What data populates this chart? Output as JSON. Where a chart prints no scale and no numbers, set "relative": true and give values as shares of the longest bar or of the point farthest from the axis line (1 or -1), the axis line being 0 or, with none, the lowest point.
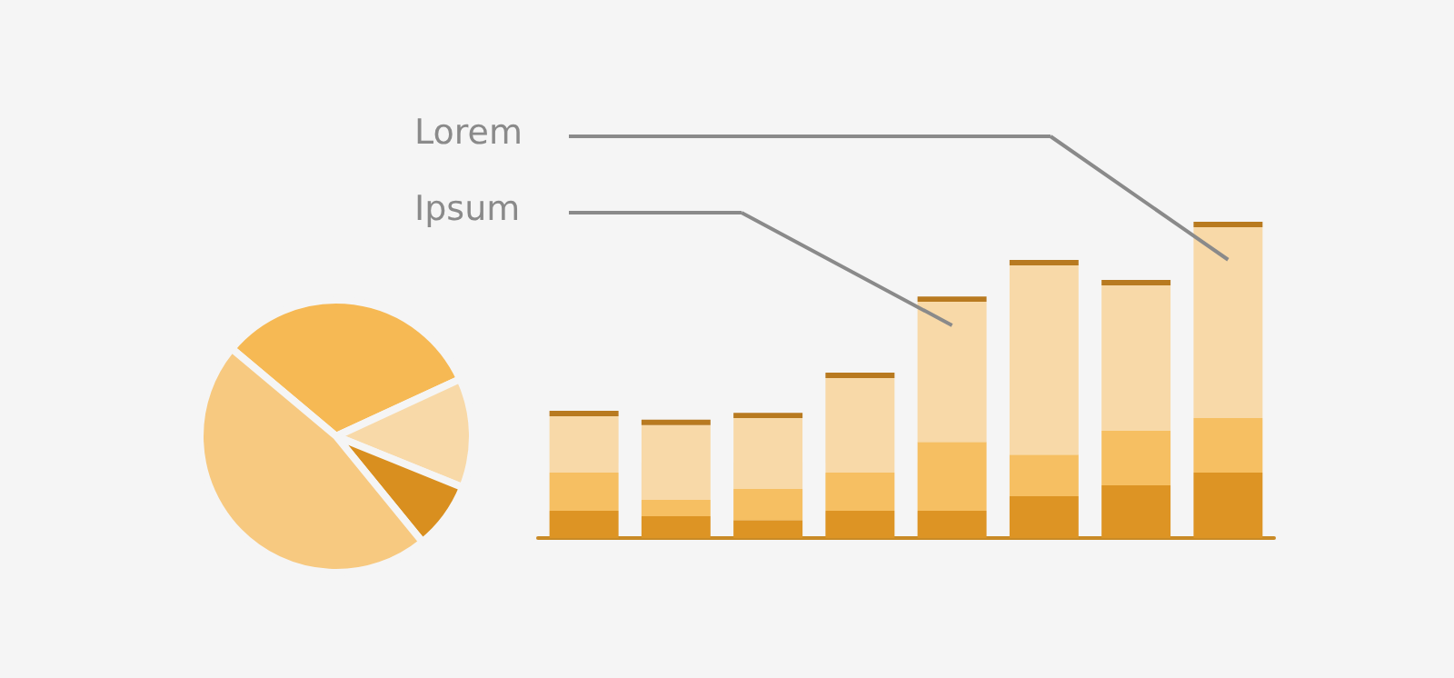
{
  "chart_data": [
    {
      "type": "pie",
      "categories": [
        null,
        null,
        null,
        null
      ],
      "values": [
        32,
        13,
        8,
        47
      ],
      "colors": [
        "#f6b954",
        "#f8d9a8",
        "#d98f1f",
        "#f7c980"
      ]
    },
    {
      "type": "bar",
      "stacked": true,
      "relative": true,
      "categories": [
        null,
        null,
        null,
        null,
        null,
        null,
        null,
        null
      ],
      "annotations": [
        "Lorem",
        "Ipsum"
      ],
      "series": [
        {
          "color": "#dd9424",
          "values": [
            0.086,
            0.069,
            0.057,
            0.086,
            0.086,
            0.132,
            0.167,
            0.207
          ]
        },
        {
          "color": "#f6bf62",
          "values": [
            0.121,
            0.052,
            0.098,
            0.121,
            0.218,
            0.132,
            0.172,
            0.172
          ]
        },
        {
          "color": "#f8d9a8",
          "values": [
            0.178,
            0.236,
            0.224,
            0.299,
            0.443,
            0.598,
            0.46,
            0.604
          ]
        },
        {
          "color": "#b87a20",
          "values": [
            0.017,
            0.017,
            0.017,
            0.017,
            0.017,
            0.017,
            0.017,
            0.017
          ]
        }
      ]
    }
  ]
}
